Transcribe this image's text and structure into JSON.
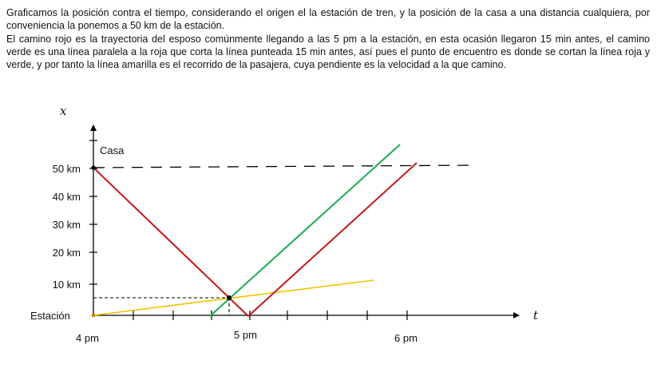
{
  "text": {
    "p1": "Graficamos la posición contra el tiempo, considerando el origen el la estación de tren, y la posición de la casa a una distancia cualquiera, por conveniencia la ponemos a 50 km de la estación.",
    "p2": "El camino rojo es la trayectoria del esposo comúnmente llegando a las 5 pm a la estación, en esta ocasión llegaron 15 min antes, el camino verde es una línea paralela a la roja que corta la línea punteada 15 min antes, así pues el punto de encuentro es donde se cortan la línea roja y verde, y por tanto la línea amarilla es el recorrido de la pasajera, cuya pendiente es la velocidad a la que camino."
  },
  "diagram": {
    "y_axis_label": "x",
    "x_axis_label": "t",
    "casa_label": "Casa",
    "y_ticks": [
      "50 km",
      "40 km",
      "30 km",
      "20 km",
      "10 km"
    ],
    "origin_label": "Estación",
    "x_ticks": [
      "4 pm",
      "5 pm",
      "6 pm"
    ],
    "colors": {
      "red": "#c0181c",
      "green": "#1faa54",
      "yellow": "#f2c200",
      "axis": "#000000"
    }
  }
}
